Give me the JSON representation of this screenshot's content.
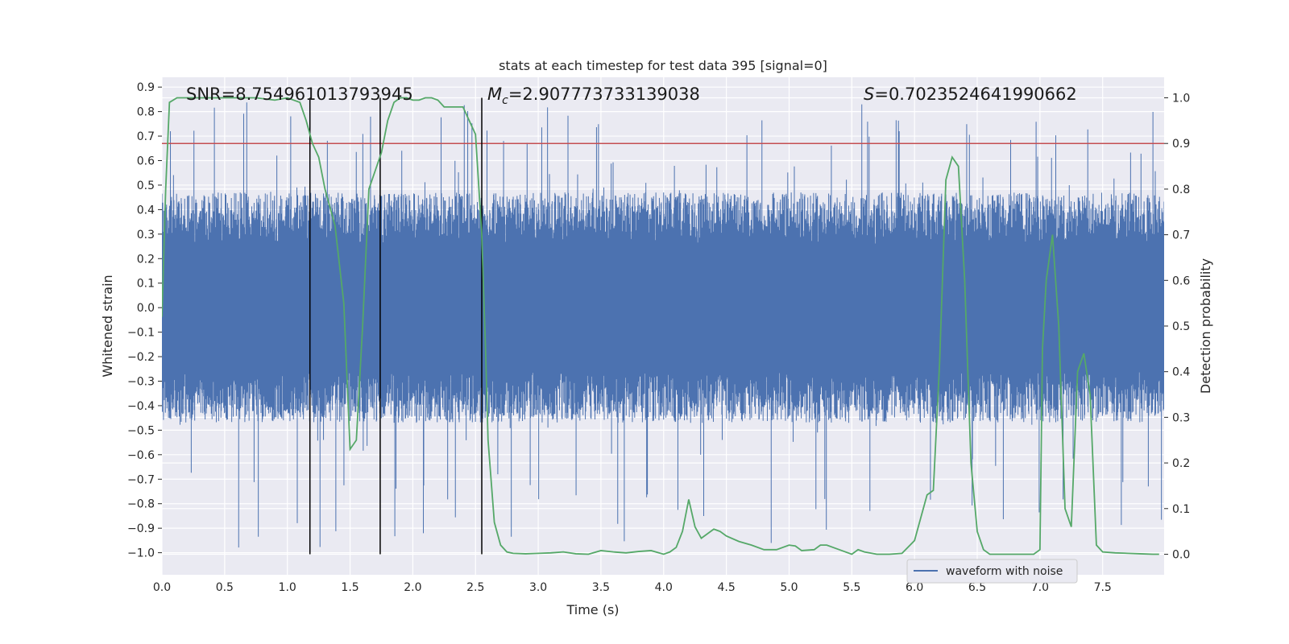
{
  "chart_data": {
    "type": "line",
    "title": "stats at each timestep for test data 395 [signal=0]",
    "xlabel": "Time (s)",
    "ylabel": "Whitened strain",
    "y2label": "Detection probability",
    "xlim": [
      0.0,
      7.99
    ],
    "ylim": [
      -1.09,
      0.94
    ],
    "y2lim": [
      -0.045,
      1.045
    ],
    "xticks": [
      "0.0",
      "0.5",
      "1.0",
      "1.5",
      "2.0",
      "2.5",
      "3.0",
      "3.5",
      "4.0",
      "4.5",
      "5.0",
      "5.5",
      "6.0",
      "6.5",
      "7.0",
      "7.5"
    ],
    "yticks": [
      "0.9",
      "0.8",
      "0.7",
      "0.6",
      "0.5",
      "0.4",
      "0.3",
      "0.2",
      "0.1",
      "0.0",
      "-0.1",
      "-0.2",
      "-0.3",
      "-0.4",
      "-0.5",
      "-0.6",
      "-0.7",
      "-0.8",
      "-0.9",
      "-1.0"
    ],
    "y2ticks": [
      "1.0",
      "0.9",
      "0.8",
      "0.7",
      "0.6",
      "0.5",
      "0.4",
      "0.3",
      "0.2",
      "0.1",
      "0.0"
    ],
    "grid": true,
    "legend": {
      "placement": "lower-right",
      "entries": [
        "waveform with noise"
      ]
    },
    "annotations": {
      "snr": "SNR=8.754961013793945",
      "mc": "=2.907773733139038",
      "s": "=0.7023524641990662"
    },
    "vlines": [
      1.18,
      1.74,
      2.55
    ],
    "threshold_prob": 0.9,
    "colors": {
      "waveform": "#4c72b0",
      "probability": "#55a868",
      "threshold": "#c44e52",
      "vline": "#000000",
      "background": "#eaeaf2",
      "grid": "#ffffff"
    },
    "series": [
      {
        "name": "waveform with noise",
        "kind": "noise-envelope",
        "sample_rate_hz": 2048,
        "typical_range": [
          -0.47,
          0.47
        ],
        "max_spike": 0.84,
        "min_spike": -0.99
      },
      {
        "kind": "probability",
        "axis": "right",
        "x": [
          0.0,
          0.03,
          0.06,
          0.12,
          0.2,
          0.3,
          0.45,
          0.6,
          0.75,
          0.9,
          1.0,
          1.1,
          1.15,
          1.2,
          1.25,
          1.3,
          1.38,
          1.45,
          1.5,
          1.55,
          1.6,
          1.65,
          1.7,
          1.75,
          1.8,
          1.85,
          1.9,
          1.95,
          2.0,
          2.05,
          2.1,
          2.15,
          2.2,
          2.25,
          2.3,
          2.4,
          2.5,
          2.55,
          2.58,
          2.6,
          2.65,
          2.7,
          2.75,
          2.8,
          2.9,
          3.0,
          3.1,
          3.2,
          3.3,
          3.4,
          3.5,
          3.6,
          3.7,
          3.8,
          3.9,
          4.0,
          4.05,
          4.1,
          4.15,
          4.2,
          4.25,
          4.3,
          4.4,
          4.45,
          4.5,
          4.6,
          4.7,
          4.8,
          4.9,
          5.0,
          5.05,
          5.1,
          5.2,
          5.25,
          5.3,
          5.4,
          5.5,
          5.55,
          5.6,
          5.7,
          5.8,
          5.9,
          6.0,
          6.05,
          6.1,
          6.15,
          6.2,
          6.25,
          6.3,
          6.35,
          6.4,
          6.45,
          6.5,
          6.55,
          6.6,
          6.7,
          6.8,
          6.9,
          6.95,
          7.0,
          7.02,
          7.05,
          7.1,
          7.15,
          7.2,
          7.25,
          7.3,
          7.35,
          7.4,
          7.45,
          7.5,
          7.6,
          7.7,
          7.8,
          7.9,
          7.95
        ],
        "y": [
          0.52,
          0.8,
          0.99,
          1.0,
          1.0,
          1.0,
          1.0,
          1.0,
          1.0,
          0.995,
          1.0,
          0.99,
          0.95,
          0.9,
          0.87,
          0.8,
          0.72,
          0.55,
          0.23,
          0.25,
          0.5,
          0.8,
          0.84,
          0.88,
          0.95,
          0.99,
          1.0,
          1.0,
          0.995,
          0.995,
          1.0,
          1.0,
          0.995,
          0.98,
          0.98,
          0.98,
          0.92,
          0.7,
          0.45,
          0.25,
          0.07,
          0.02,
          0.005,
          0.002,
          0.001,
          0.002,
          0.003,
          0.005,
          0.001,
          0.0,
          0.008,
          0.005,
          0.003,
          0.006,
          0.008,
          0.0,
          0.005,
          0.015,
          0.05,
          0.12,
          0.06,
          0.035,
          0.055,
          0.05,
          0.04,
          0.028,
          0.02,
          0.01,
          0.01,
          0.02,
          0.018,
          0.008,
          0.01,
          0.02,
          0.02,
          0.01,
          0.0,
          0.01,
          0.005,
          0.0,
          0.0,
          0.002,
          0.03,
          0.08,
          0.13,
          0.14,
          0.42,
          0.82,
          0.87,
          0.85,
          0.6,
          0.2,
          0.05,
          0.01,
          0.0,
          0.0,
          0.0,
          0.0,
          0.0,
          0.01,
          0.45,
          0.6,
          0.7,
          0.5,
          0.1,
          0.06,
          0.4,
          0.44,
          0.35,
          0.02,
          0.005,
          0.003,
          0.002,
          0.001,
          0.0,
          0.0
        ]
      }
    ]
  }
}
